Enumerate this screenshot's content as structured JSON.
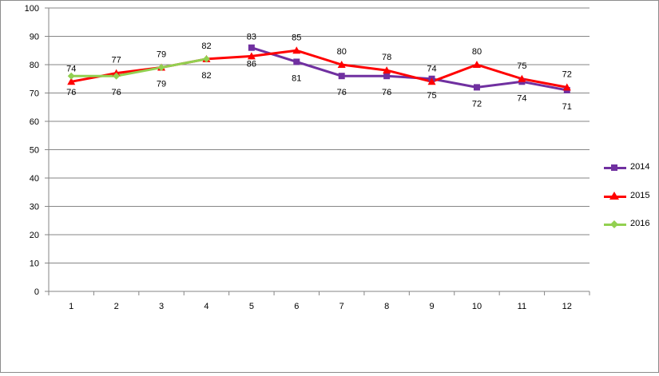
{
  "chart_data": {
    "type": "line",
    "categories": [
      "1",
      "2",
      "3",
      "4",
      "5",
      "6",
      "7",
      "8",
      "9",
      "10",
      "11",
      "12"
    ],
    "y_ticks": [
      "0",
      "10",
      "20",
      "30",
      "40",
      "50",
      "60",
      "70",
      "80",
      "90",
      "100"
    ],
    "ylim": [
      0,
      100
    ],
    "grid": true,
    "legend_position": "right",
    "series": [
      {
        "name": "2014",
        "color": "#7030a0",
        "marker": "square",
        "values": [
          null,
          null,
          null,
          null,
          86,
          81,
          76,
          76,
          75,
          72,
          74,
          71
        ],
        "labels": [
          null,
          null,
          null,
          null,
          "86",
          "81",
          "76",
          "76",
          "75",
          "72",
          "74",
          "71"
        ]
      },
      {
        "name": "2015",
        "color": "#ff0000",
        "marker": "triangle",
        "values": [
          74,
          77,
          79,
          82,
          83,
          85,
          80,
          78,
          74,
          80,
          75,
          72
        ],
        "labels": [
          "74",
          "77",
          "79",
          "82",
          "83",
          "85",
          "80",
          "78",
          "74",
          "80",
          "75",
          "72"
        ]
      },
      {
        "name": "2016",
        "color": "#92d050",
        "marker": "diamond",
        "values": [
          76,
          76,
          79,
          82,
          null,
          null,
          null,
          null,
          null,
          null,
          null,
          null
        ],
        "labels": [
          "76",
          "76",
          "79",
          "82",
          null,
          null,
          null,
          null,
          null,
          null,
          null,
          null
        ]
      }
    ]
  }
}
